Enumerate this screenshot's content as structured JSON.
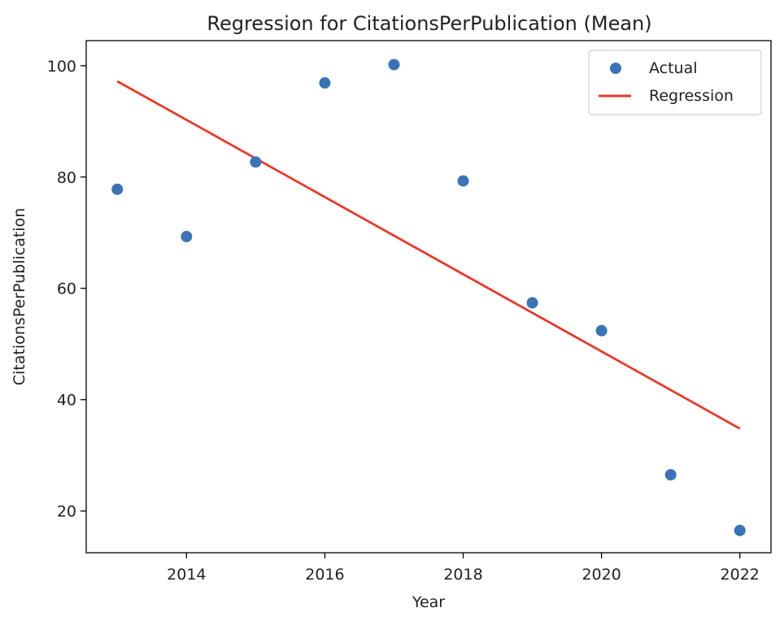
{
  "chart_data": {
    "type": "scatter",
    "title": "Regression for CitationsPerPublication (Mean)",
    "xlabel": "Year",
    "ylabel": "CitationsPerPublication",
    "xlim": [
      2012.55,
      2022.45
    ],
    "ylim": [
      12.5,
      104.5
    ],
    "xticks": [
      2014,
      2016,
      2018,
      2020,
      2022
    ],
    "yticks": [
      20,
      40,
      60,
      80,
      100
    ],
    "grid": false,
    "legend_position": "top-right",
    "series": [
      {
        "name": "Actual",
        "kind": "scatter",
        "color": "#3b73b5",
        "x": [
          2013,
          2014,
          2015,
          2016,
          2017,
          2018,
          2019,
          2020,
          2021,
          2022
        ],
        "y": [
          77.8,
          69.3,
          82.7,
          96.9,
          100.2,
          79.3,
          57.4,
          52.4,
          26.5,
          16.5
        ]
      },
      {
        "name": "Regression",
        "kind": "line",
        "color": "#e33b2d",
        "x": [
          2013,
          2022
        ],
        "y": [
          97.2,
          34.8
        ]
      }
    ]
  }
}
